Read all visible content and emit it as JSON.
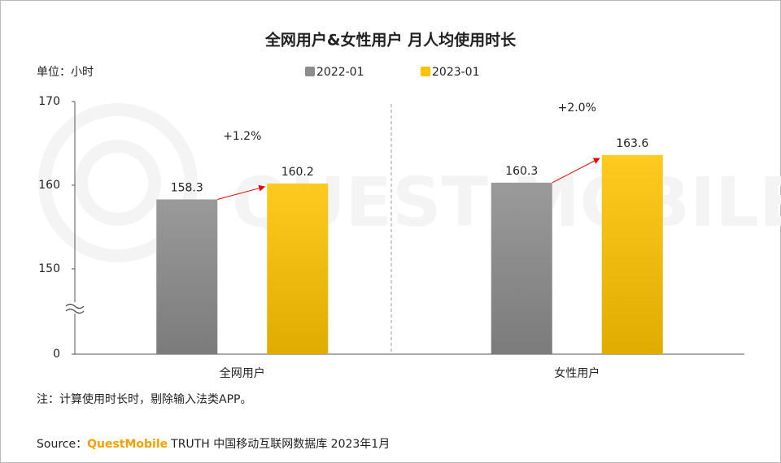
{
  "chart_data": {
    "type": "bar",
    "title": "全网用户&女性用户 月人均使用时长",
    "unit_label": "单位：小时",
    "categories": [
      "全网用户",
      "女性用户"
    ],
    "series": [
      {
        "name": "2022-01",
        "color": "#8c8c8c",
        "values": [
          158.3,
          160.3
        ]
      },
      {
        "name": "2023-01",
        "color": "#ffc300",
        "values": [
          160.2,
          163.6
        ]
      }
    ],
    "annotations": [
      "+1.2%",
      "+2.0%"
    ],
    "yticks": [
      0,
      150,
      160,
      170
    ],
    "ylim": [
      0,
      170
    ],
    "axis_break": true,
    "note": "注：计算使用时长时，剔除输入法类APP。",
    "source": {
      "prefix": "Source：",
      "brand": "QuestMobile",
      "text": "TRUTH 中国移动互联网数据库 2023年1月"
    },
    "watermark": "QUEST MOBILE"
  }
}
